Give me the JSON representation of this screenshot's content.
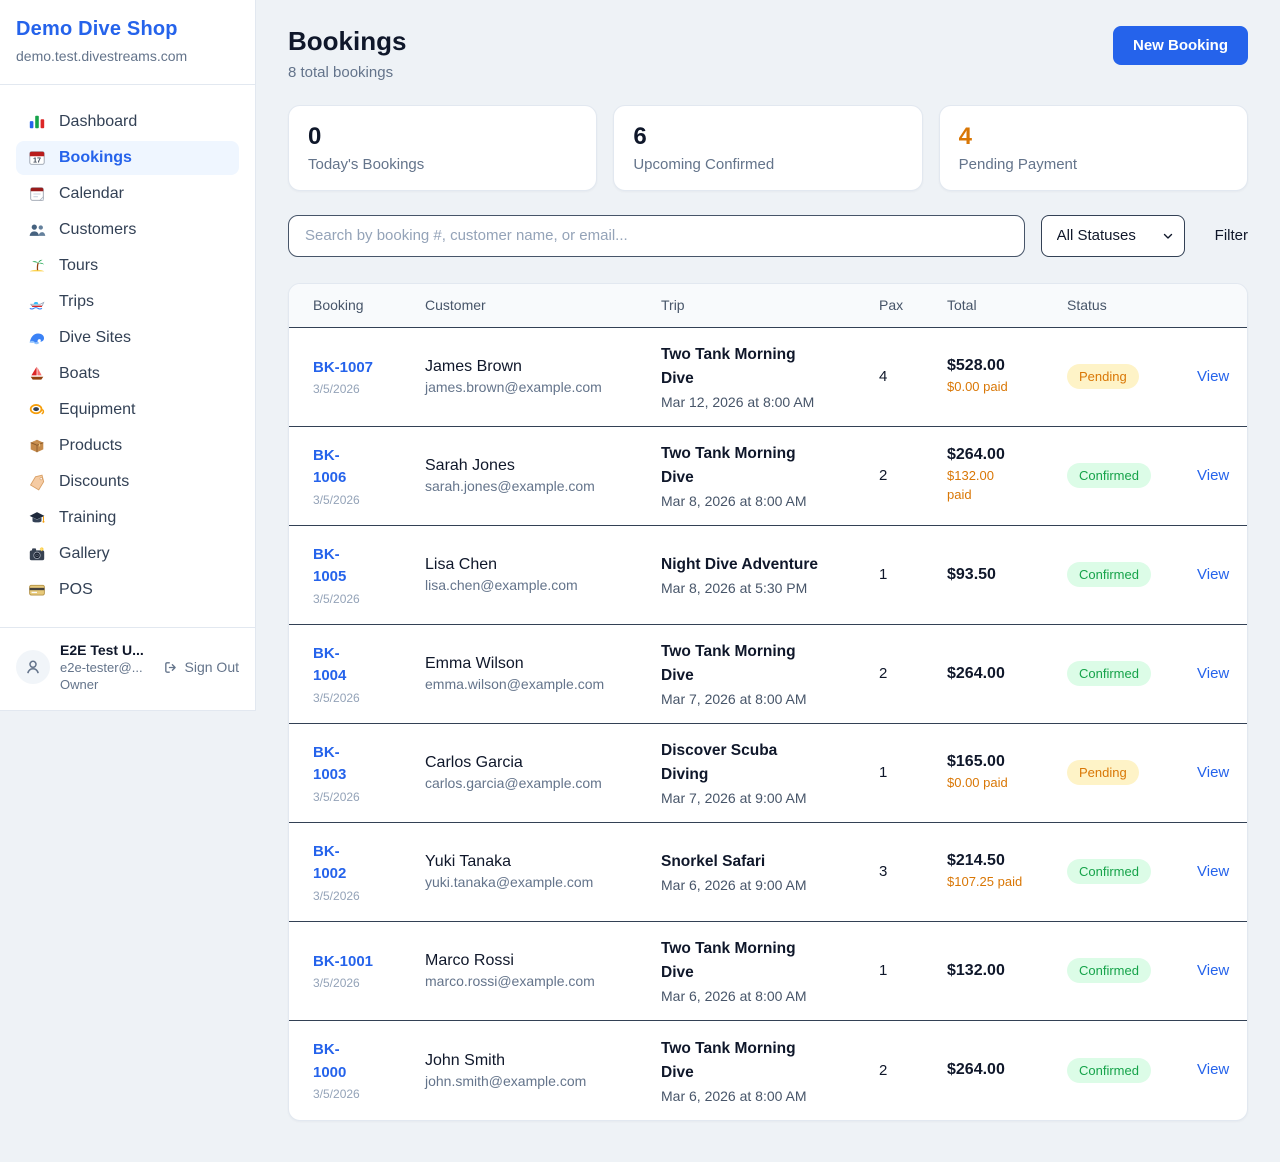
{
  "brand": {
    "name": "Demo Dive Shop",
    "domain": "demo.test.divestreams.com"
  },
  "sidebar": [
    {
      "icon": "dashboard-icon",
      "label": "Dashboard",
      "active": false
    },
    {
      "icon": "bookings-icon",
      "label": "Bookings",
      "active": true
    },
    {
      "icon": "calendar-icon",
      "label": "Calendar",
      "active": false
    },
    {
      "icon": "customers-icon",
      "label": "Customers",
      "active": false
    },
    {
      "icon": "tours-icon",
      "label": "Tours",
      "active": false
    },
    {
      "icon": "trips-icon",
      "label": "Trips",
      "active": false
    },
    {
      "icon": "dive-sites-icon",
      "label": "Dive Sites",
      "active": false
    },
    {
      "icon": "boats-icon",
      "label": "Boats",
      "active": false
    },
    {
      "icon": "equipment-icon",
      "label": "Equipment",
      "active": false
    },
    {
      "icon": "products-icon",
      "label": "Products",
      "active": false
    },
    {
      "icon": "discounts-icon",
      "label": "Discounts",
      "active": false
    },
    {
      "icon": "training-icon",
      "label": "Training",
      "active": false
    },
    {
      "icon": "gallery-icon",
      "label": "Gallery",
      "active": false
    },
    {
      "icon": "pos-icon",
      "label": "POS",
      "active": false
    }
  ],
  "user": {
    "name": "E2E Test U...",
    "email": "e2e-tester@...",
    "role": "Owner",
    "sign_out_label": "Sign Out"
  },
  "header": {
    "title": "Bookings",
    "subtitle": "8 total bookings",
    "new_booking_label": "New Booking"
  },
  "stats": [
    {
      "value": "0",
      "label": "Today's Bookings",
      "accent": "#0f172a"
    },
    {
      "value": "6",
      "label": "Upcoming Confirmed",
      "accent": "#0f172a"
    },
    {
      "value": "4",
      "label": "Pending Payment",
      "accent": "#d97706"
    }
  ],
  "filters": {
    "search_placeholder": "Search by booking #, customer name, or email...",
    "status_selected": "All Statuses",
    "filter_label": "Filter"
  },
  "table": {
    "headers": [
      "Booking",
      "Customer",
      "Trip",
      "Pax",
      "Total",
      "Status"
    ],
    "view_label": "View",
    "rows": [
      {
        "id": "BK-1007",
        "id_lines": [
          "BK-1007"
        ],
        "date": "3/5/2026",
        "customer": "James Brown",
        "email": "james.brown@example.com",
        "trip": "Two Tank Morning Dive",
        "trip_lines": [
          "Two Tank Morning",
          "Dive"
        ],
        "datetime": "Mar 12, 2026 at 8:00 AM",
        "pax": "4",
        "total": "$528.00",
        "paid_lines": [
          "$0.00 paid"
        ],
        "status": "Pending"
      },
      {
        "id": "BK-1006",
        "id_lines": [
          "BK-",
          "1006"
        ],
        "date": "3/5/2026",
        "customer": "Sarah Jones",
        "email": "sarah.jones@example.com",
        "trip": "Two Tank Morning Dive",
        "trip_lines": [
          "Two Tank Morning",
          "Dive"
        ],
        "datetime": "Mar 8, 2026 at 8:00 AM",
        "pax": "2",
        "total": "$264.00",
        "paid_lines": [
          "$132.00",
          "paid"
        ],
        "status": "Confirmed"
      },
      {
        "id": "BK-1005",
        "id_lines": [
          "BK-",
          "1005"
        ],
        "date": "3/5/2026",
        "customer": "Lisa Chen",
        "email": "lisa.chen@example.com",
        "trip": "Night Dive Adventure",
        "trip_lines": [
          "Night Dive Adventure"
        ],
        "datetime": "Mar 8, 2026 at 5:30 PM",
        "pax": "1",
        "total": "$93.50",
        "paid_lines": null,
        "status": "Confirmed"
      },
      {
        "id": "BK-1004",
        "id_lines": [
          "BK-",
          "1004"
        ],
        "date": "3/5/2026",
        "customer": "Emma Wilson",
        "email": "emma.wilson@example.com",
        "trip": "Two Tank Morning Dive",
        "trip_lines": [
          "Two Tank Morning",
          "Dive"
        ],
        "datetime": "Mar 7, 2026 at 8:00 AM",
        "pax": "2",
        "total": "$264.00",
        "paid_lines": null,
        "status": "Confirmed"
      },
      {
        "id": "BK-1003",
        "id_lines": [
          "BK-",
          "1003"
        ],
        "date": "3/5/2026",
        "customer": "Carlos Garcia",
        "email": "carlos.garcia@example.com",
        "trip": "Discover Scuba Diving",
        "trip_lines": [
          "Discover Scuba",
          "Diving"
        ],
        "datetime": "Mar 7, 2026 at 9:00 AM",
        "pax": "1",
        "total": "$165.00",
        "paid_lines": [
          "$0.00 paid"
        ],
        "status": "Pending"
      },
      {
        "id": "BK-1002",
        "id_lines": [
          "BK-",
          "1002"
        ],
        "date": "3/5/2026",
        "customer": "Yuki Tanaka",
        "email": "yuki.tanaka@example.com",
        "trip": "Snorkel Safari",
        "trip_lines": [
          "Snorkel Safari"
        ],
        "datetime": "Mar 6, 2026 at 9:00 AM",
        "pax": "3",
        "total": "$214.50",
        "paid_lines": [
          "$107.25 paid"
        ],
        "status": "Confirmed"
      },
      {
        "id": "BK-1001",
        "id_lines": [
          "BK-1001"
        ],
        "date": "3/5/2026",
        "customer": "Marco Rossi",
        "email": "marco.rossi@example.com",
        "trip": "Two Tank Morning Dive",
        "trip_lines": [
          "Two Tank Morning",
          "Dive"
        ],
        "datetime": "Mar 6, 2026 at 8:00 AM",
        "pax": "1",
        "total": "$132.00",
        "paid_lines": null,
        "status": "Confirmed"
      },
      {
        "id": "BK-1000",
        "id_lines": [
          "BK-",
          "1000"
        ],
        "date": "3/5/2026",
        "customer": "John Smith",
        "email": "john.smith@example.com",
        "trip": "Two Tank Morning Dive",
        "trip_lines": [
          "Two Tank Morning",
          "Dive"
        ],
        "datetime": "Mar 6, 2026 at 8:00 AM",
        "pax": "2",
        "total": "$264.00",
        "paid_lines": null,
        "status": "Confirmed"
      }
    ]
  },
  "colors": {
    "accent": "#2563eb",
    "pending_text": "#d97706",
    "pending_bg": "#fef3c7",
    "confirmed_text": "#16a34a",
    "confirmed_bg": "#dcfce7",
    "page_bg": "#eef2f6"
  }
}
